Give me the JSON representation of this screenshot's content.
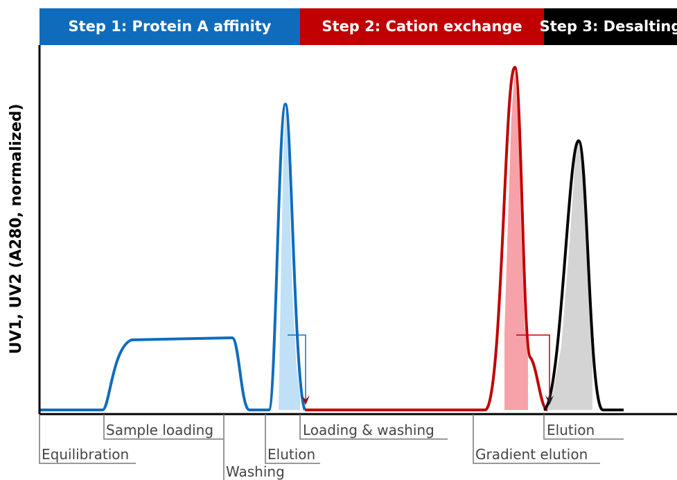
{
  "header": {
    "steps": [
      "Step 1: Protein A affinity",
      "Step 2: Cation exchange",
      "Step 3: Desalting"
    ]
  },
  "y_axis_label": "UV1, UV2 (A280, normalized)",
  "phases": [
    "Equilibration",
    "Sample loading",
    "Washing",
    "Elution",
    "Loading & washing",
    "Gradient elution",
    "Elution"
  ]
}
